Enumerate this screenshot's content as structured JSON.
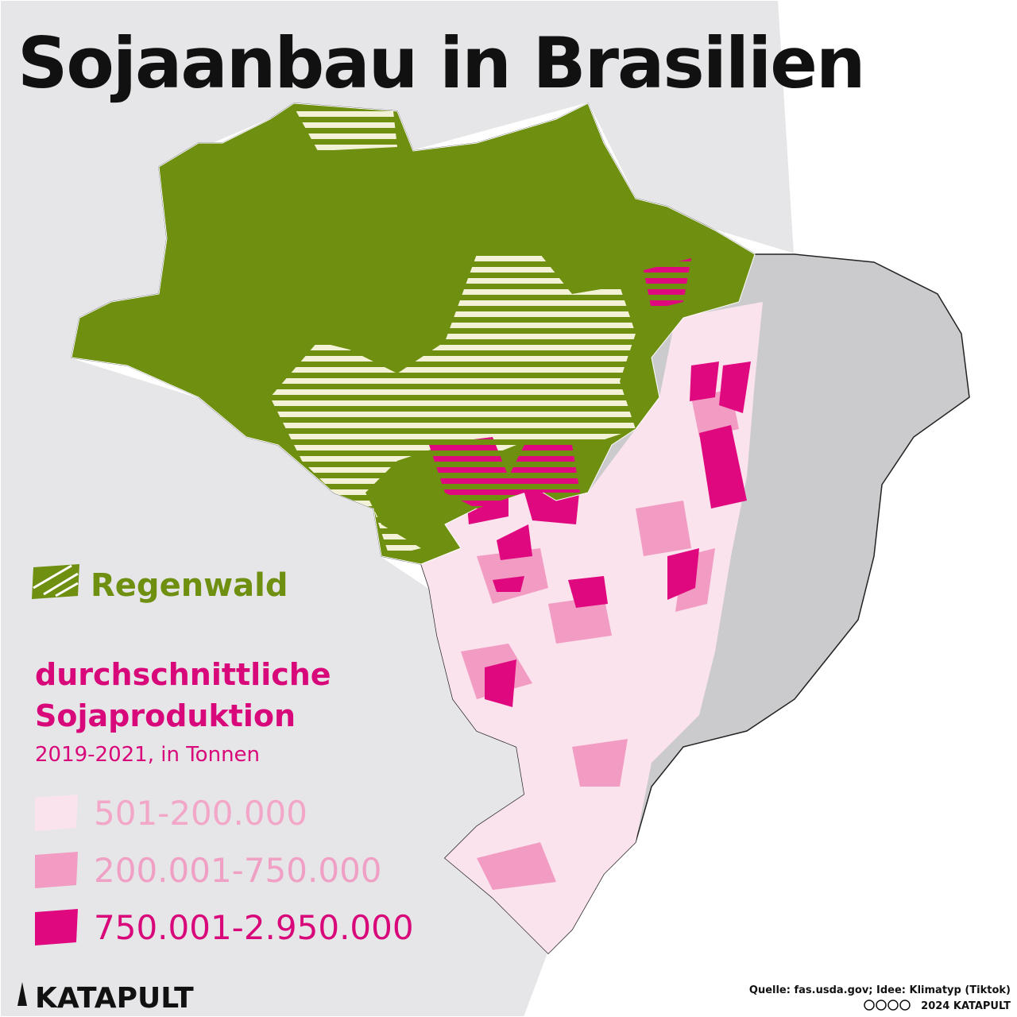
{
  "header": {
    "title": "Sojaanbau in Brasilien"
  },
  "legend": {
    "rainforest": {
      "label": "Regenwald",
      "color": "#6e8f0f"
    },
    "production": {
      "heading": [
        "durchschnittliche",
        "Sojaproduktion"
      ],
      "subtitle": "2019-2021, in Tonnen",
      "classes": [
        {
          "label": "501-200.000",
          "color": "#fbe3ee",
          "text_color": "#f3a7c8"
        },
        {
          "label": "200.001-750.000",
          "color": "#f29cc3",
          "text_color": "#f0a0c4"
        },
        {
          "label": "750.001-2.950.000",
          "color": "#e0087f",
          "text_color": "#d8077a"
        }
      ]
    }
  },
  "footer": {
    "brand": "KATAPULT",
    "source": "Quelle: fas.usda.gov; Idee: Klimatyp (Tiktok)",
    "copyright": "2024 KATAPULT"
  }
}
